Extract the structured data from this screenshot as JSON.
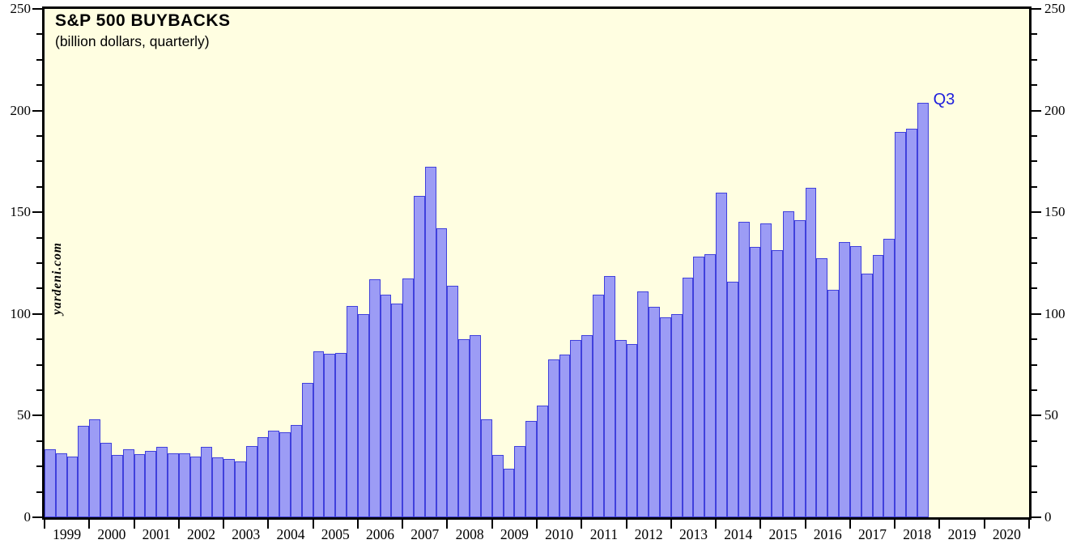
{
  "watermark": "yardeni.com",
  "annotation": {
    "label": "Q3",
    "color": "#1f1fdd"
  },
  "axes": {
    "y_unit_note": "billion dollars",
    "y_major_ticks": [
      0,
      50,
      100,
      150,
      200,
      250
    ],
    "y_minor_step": 12.5,
    "x_year_labels": [
      "1999",
      "2000",
      "2001",
      "2002",
      "2003",
      "2004",
      "2005",
      "2006",
      "2007",
      "2008",
      "2009",
      "2010",
      "2011",
      "2012",
      "2013",
      "2014",
      "2015",
      "2016",
      "2017",
      "2018",
      "2019",
      "2020"
    ]
  },
  "colors": {
    "plot_background": "#fffee1",
    "bar_fill": "#9c9cf5",
    "bar_border": "#4040dc",
    "axis": "#000000",
    "annotation_blue": "#1f1fdd"
  },
  "chart_data": {
    "type": "bar",
    "title": "S&P 500 BUYBACKS",
    "subtitle": "(billion dollars, quarterly)",
    "xlabel": "",
    "ylabel": "",
    "ylim": [
      0,
      250
    ],
    "grid": false,
    "legend": "none",
    "x_axis_years_shown": [
      1999,
      2000,
      2001,
      2002,
      2003,
      2004,
      2005,
      2006,
      2007,
      2008,
      2009,
      2010,
      2011,
      2012,
      2013,
      2014,
      2015,
      2016,
      2017,
      2018,
      2019,
      2020
    ],
    "last_bar_label": "Q3",
    "series": [
      {
        "year": 1999,
        "values": [
          33.5,
          31.5,
          30,
          45
        ]
      },
      {
        "year": 2000,
        "values": [
          48,
          36.5,
          30.5,
          33.5
        ]
      },
      {
        "year": 2001,
        "values": [
          31,
          32.5,
          34.5,
          31.5
        ]
      },
      {
        "year": 2002,
        "values": [
          31.5,
          30,
          34.5,
          29.5
        ]
      },
      {
        "year": 2003,
        "values": [
          28.5,
          27.5,
          35,
          39.5
        ]
      },
      {
        "year": 2004,
        "values": [
          42.5,
          42,
          45.5,
          66
        ]
      },
      {
        "year": 2005,
        "values": [
          81.5,
          80.5,
          81,
          104
        ]
      },
      {
        "year": 2006,
        "values": [
          100,
          117,
          109.5,
          105
        ]
      },
      {
        "year": 2007,
        "values": [
          117.5,
          158,
          172.5,
          142
        ]
      },
      {
        "year": 2008,
        "values": [
          114,
          87.5,
          89.5,
          48
        ]
      },
      {
        "year": 2009,
        "values": [
          30.5,
          24,
          35,
          47.5
        ]
      },
      {
        "year": 2010,
        "values": [
          55,
          77.5,
          80,
          87
        ]
      },
      {
        "year": 2011,
        "values": [
          89.5,
          109.5,
          118.5,
          87
        ]
      },
      {
        "year": 2012,
        "values": [
          85,
          111,
          103.5,
          98.5
        ]
      },
      {
        "year": 2013,
        "values": [
          100,
          118,
          128,
          129.5
        ]
      },
      {
        "year": 2014,
        "values": [
          159.5,
          116,
          145.5,
          133
        ]
      },
      {
        "year": 2015,
        "values": [
          144.5,
          131.5,
          150.5,
          146
        ]
      },
      {
        "year": 2016,
        "values": [
          162,
          127.5,
          112,
          135.5
        ]
      },
      {
        "year": 2017,
        "values": [
          133.5,
          120,
          129,
          137
        ]
      },
      {
        "year": 2018,
        "values": [
          189.5,
          191,
          204
        ]
      }
    ]
  }
}
